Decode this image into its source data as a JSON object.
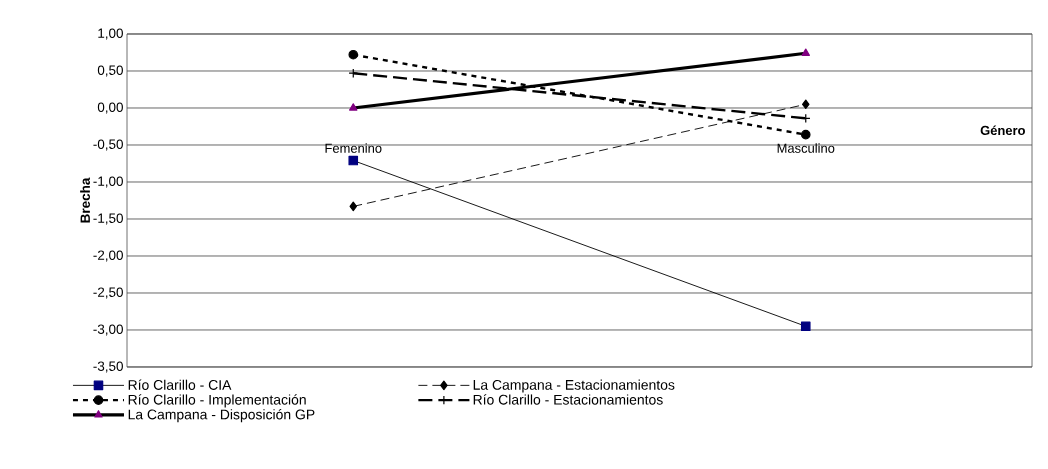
{
  "chart_data": {
    "type": "line",
    "xlabel": "Género",
    "ylabel": "Brecha",
    "categories": [
      "Femenino",
      "Masculino"
    ],
    "series": [
      {
        "name": "Río Clarillo - CIA",
        "color": "#000080",
        "marker": "square",
        "line_style": "solid",
        "values": [
          -0.71,
          -2.95
        ]
      },
      {
        "name": "La Campana - Estacionamientos",
        "color": "#000000",
        "marker": "diamond",
        "line_style": "dashed",
        "values": [
          -1.33,
          0.05
        ]
      },
      {
        "name": "Río Clarillo - Implementación",
        "color": "#000000",
        "marker": "circle",
        "line_style": "dashed",
        "values": [
          0.72,
          -0.36
        ]
      },
      {
        "name": "Río Clarillo - Estacionamientos",
        "color": "#000000",
        "marker": "cross",
        "line_style": "dashed",
        "values": [
          0.47,
          -0.14
        ]
      },
      {
        "name": "La Campana - Disposición GP",
        "color": "#800080",
        "marker": "triangle",
        "line_style": "solid",
        "values": [
          0.0,
          0.74
        ]
      }
    ],
    "ylim": [
      -3.5,
      1.0
    ],
    "yticks": [
      {
        "value": -3.5,
        "label": "-3,50"
      },
      {
        "value": -3.0,
        "label": "-3,00"
      },
      {
        "value": -2.5,
        "label": "-2,50"
      },
      {
        "value": -2.0,
        "label": "-2,00"
      },
      {
        "value": -1.5,
        "label": "-1,50"
      },
      {
        "value": -1.0,
        "label": "-1,00"
      },
      {
        "value": -0.5,
        "label": "-0,50"
      },
      {
        "value": 0.0,
        "label": "0,00"
      },
      {
        "value": 0.5,
        "label": "0,50"
      },
      {
        "value": 1.0,
        "label": "1,00"
      }
    ],
    "grid": "y",
    "legend": "bottom"
  }
}
